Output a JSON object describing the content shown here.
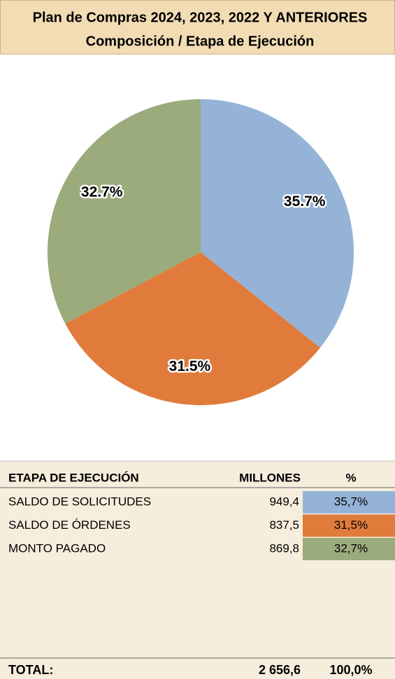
{
  "chart_data": {
    "type": "pie",
    "title": "Plan de Compras 2024, 2023, 2022 Y ANTERIORES",
    "subtitle": "Composición / Etapa de Ejecución",
    "categories": [
      "SALDO DE SOLICITUDES",
      "SALDO DE ÓRDENES",
      "MONTO PAGADO"
    ],
    "values": [
      35.7,
      31.5,
      32.7
    ],
    "value_labels": [
      "35.7%",
      "31.5%",
      "32.7%"
    ],
    "colors": [
      "#95b3d7",
      "#e07b3c",
      "#9bab7c"
    ]
  },
  "table": {
    "headers": [
      "ETAPA DE EJECUCIÓN",
      "MILLONES",
      "%"
    ],
    "rows": [
      [
        "949,4",
        "35,7%"
      ],
      [
        "837,5",
        "31,5%"
      ],
      [
        "869,8",
        "32,7%"
      ]
    ],
    "total": [
      "TOTAL:",
      "2 656,6",
      "100,0%"
    ]
  }
}
